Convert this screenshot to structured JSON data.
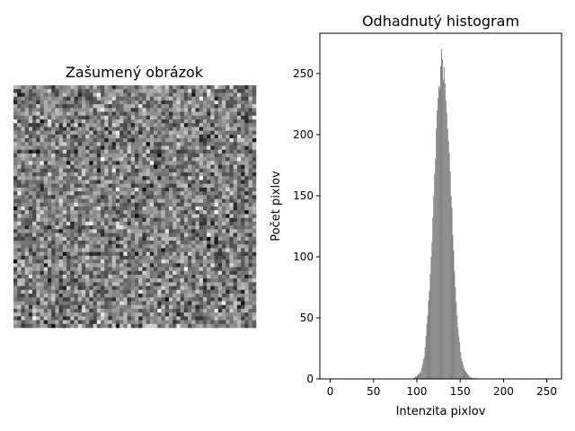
{
  "chart_data": [
    {
      "type": "heatmap",
      "title": "Zašumený obrázok",
      "colormap": "gray",
      "axis": "off",
      "grid_size": [
        64,
        64
      ],
      "intensity_mean": 133,
      "intensity_std": 10
    },
    {
      "type": "bar",
      "title": "Odhadnutý histogram",
      "xlabel": "Intenzita pixlov",
      "ylabel": "Počet pixlov",
      "xlim": [
        -12,
        267
      ],
      "ylim": [
        0,
        283
      ],
      "xticks": [
        0,
        50,
        100,
        150,
        200,
        250
      ],
      "yticks": [
        0,
        50,
        100,
        150,
        200,
        250
      ],
      "bar_color": "#808080",
      "grid": false,
      "x": [
        96,
        97,
        98,
        99,
        100,
        101,
        102,
        103,
        104,
        105,
        106,
        107,
        108,
        109,
        110,
        111,
        112,
        113,
        114,
        115,
        116,
        117,
        118,
        119,
        120,
        121,
        122,
        123,
        124,
        125,
        126,
        127,
        128,
        129,
        130,
        131,
        132,
        133,
        134,
        135,
        136,
        137,
        138,
        139,
        140,
        141,
        142,
        143,
        144,
        145,
        146,
        147,
        148,
        149,
        150,
        151,
        152,
        153,
        154,
        155,
        156,
        157,
        158,
        159,
        160,
        161,
        162,
        163,
        164,
        165,
        166,
        167,
        168,
        169,
        170
      ],
      "values": [
        1,
        1,
        2,
        2,
        3,
        4,
        4,
        6,
        5,
        9,
        12,
        16,
        18,
        26,
        35,
        45,
        52,
        64,
        72,
        86,
        100,
        112,
        132,
        150,
        168,
        180,
        205,
        220,
        230,
        240,
        238,
        256,
        270,
        262,
        245,
        255,
        242,
        228,
        218,
        205,
        195,
        185,
        170,
        150,
        140,
        118,
        105,
        88,
        75,
        63,
        52,
        42,
        35,
        30,
        22,
        17,
        14,
        11,
        9,
        7,
        6,
        5,
        4,
        3,
        2,
        2,
        1,
        1,
        1,
        0,
        1,
        0,
        0,
        1,
        0
      ]
    }
  ]
}
